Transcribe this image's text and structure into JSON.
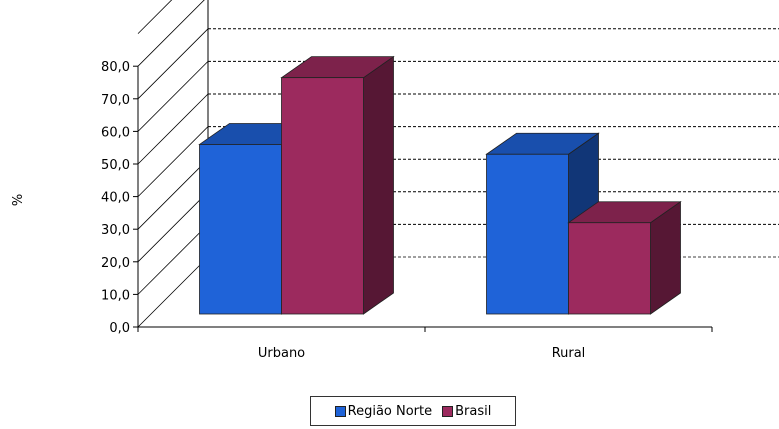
{
  "chart_data": {
    "type": "bar",
    "categories": [
      "Urbano",
      "Rural"
    ],
    "series": [
      {
        "name": "Região Norte",
        "values": [
          52.0,
          49.0
        ],
        "color": "#1f63d8"
      },
      {
        "name": "Brasil",
        "values": [
          72.5,
          28.0
        ],
        "color": "#9c2a5e"
      }
    ],
    "title": "",
    "xlabel": "",
    "ylabel": "%",
    "ylim": [
      0,
      80
    ],
    "yticks": [
      "0,0",
      "10,0",
      "20,0",
      "30,0",
      "40,0",
      "50,0",
      "60,0",
      "70,0",
      "80,0"
    ],
    "grid": true,
    "legend": "bottom"
  }
}
